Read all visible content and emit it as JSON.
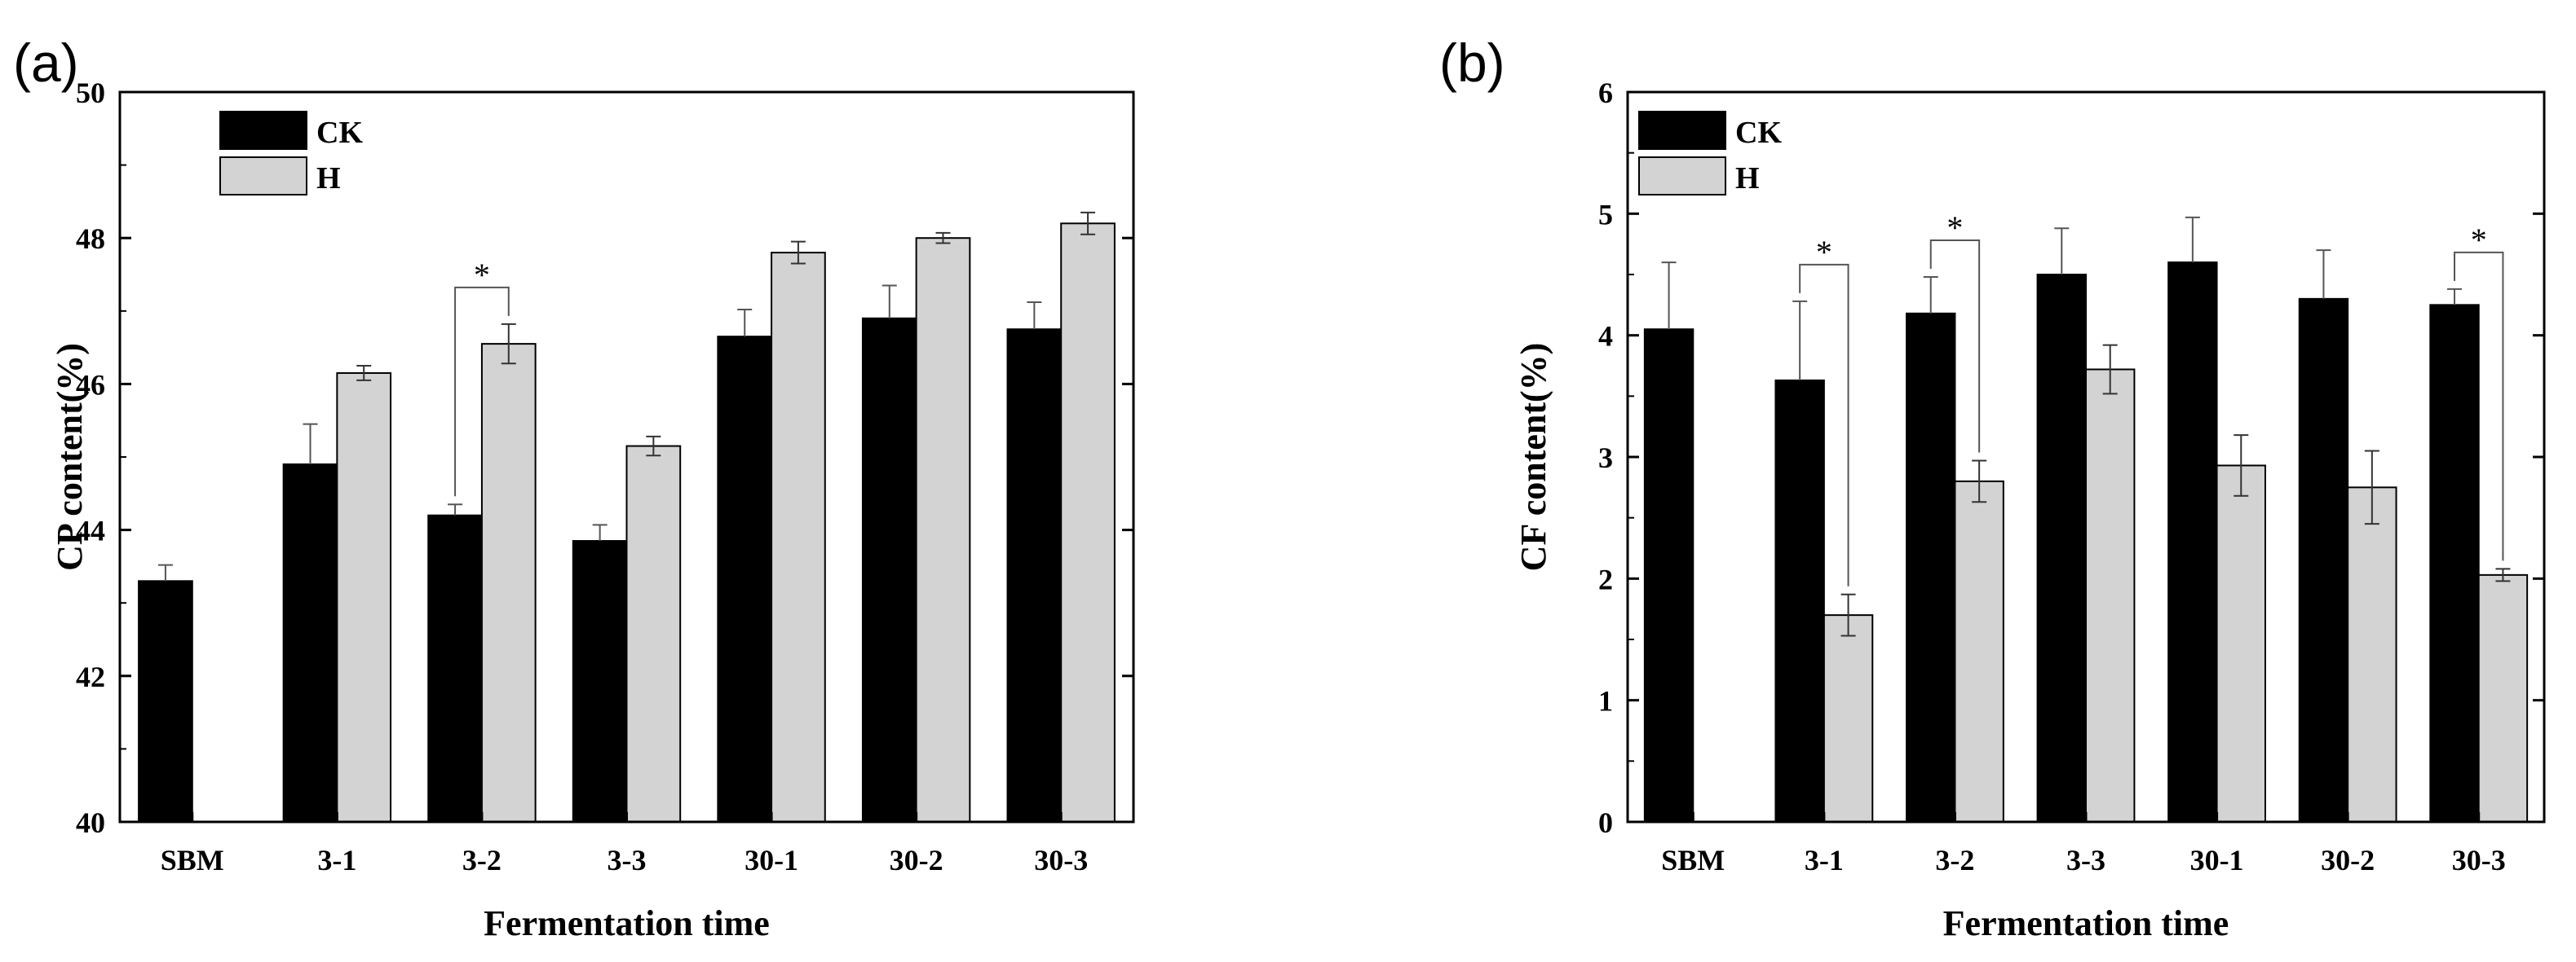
{
  "colors": {
    "ck": "#000000",
    "h": "#d3d3d3",
    "axis": "#000000"
  },
  "chart_data": [
    {
      "type": "bar",
      "panel_label": "(a)",
      "title": "",
      "xlabel": "Fermentation time",
      "ylabel": "CP content(%)",
      "ylim": [
        40,
        50
      ],
      "yticks": [
        "40",
        "42",
        "44",
        "46",
        "48",
        "50"
      ],
      "categories": [
        "SBM",
        "3-1",
        "3-2",
        "3-3",
        "30-1",
        "30-2",
        "30-3"
      ],
      "legend": {
        "position": "top-left"
      },
      "series": [
        {
          "name": "CK",
          "values": [
            43.3,
            44.9,
            44.2,
            43.85,
            46.65,
            46.9,
            46.75
          ],
          "errors": [
            0.22,
            0.55,
            0.15,
            0.22,
            0.37,
            0.45,
            0.37
          ]
        },
        {
          "name": "H",
          "values": [
            null,
            46.15,
            46.55,
            45.15,
            47.8,
            48.0,
            48.2
          ],
          "errors": [
            null,
            0.1,
            0.27,
            0.13,
            0.15,
            0.07,
            0.15
          ]
        }
      ],
      "significance": [
        {
          "category": "3-2",
          "label": "*"
        }
      ]
    },
    {
      "type": "bar",
      "panel_label": "(b)",
      "title": "",
      "xlabel": "Fermentation time",
      "ylabel": "CF content(%)",
      "ylim": [
        0,
        6
      ],
      "yticks": [
        "0",
        "1",
        "2",
        "3",
        "4",
        "5",
        "6"
      ],
      "categories": [
        "SBM",
        "3-1",
        "3-2",
        "3-3",
        "30-1",
        "30-2",
        "30-3"
      ],
      "legend": {
        "position": "top-left"
      },
      "series": [
        {
          "name": "CK",
          "values": [
            4.05,
            3.63,
            4.18,
            4.5,
            4.6,
            4.3,
            4.25
          ],
          "errors": [
            0.55,
            0.65,
            0.3,
            0.38,
            0.37,
            0.4,
            0.13
          ]
        },
        {
          "name": "H",
          "values": [
            null,
            1.7,
            2.8,
            3.72,
            2.93,
            2.75,
            2.03
          ],
          "errors": [
            null,
            0.17,
            0.17,
            0.2,
            0.25,
            0.3,
            0.05
          ]
        }
      ],
      "significance": [
        {
          "category": "3-1",
          "label": "*"
        },
        {
          "category": "3-2",
          "label": "*"
        },
        {
          "category": "30-3",
          "label": "*"
        }
      ]
    }
  ]
}
